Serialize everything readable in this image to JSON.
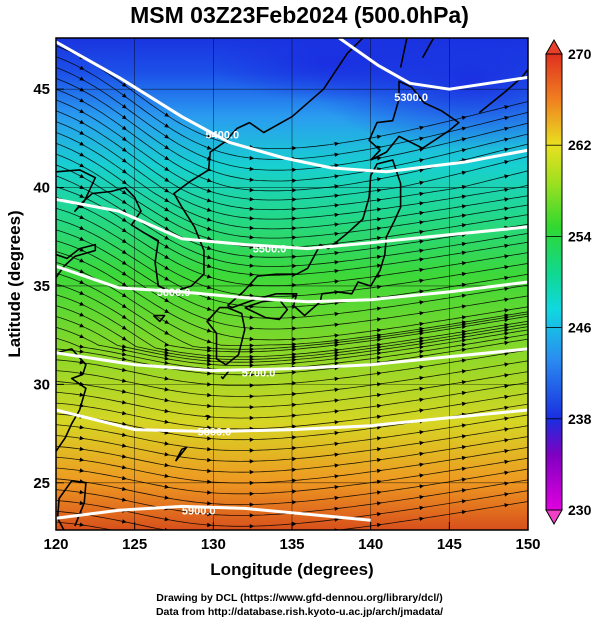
{
  "title": "MSM 03Z23Feb2024 (500.0hPa)",
  "x_axis": {
    "title": "Longitude (degrees)",
    "range": [
      120,
      150
    ],
    "ticks": [
      "120",
      "125",
      "130",
      "135",
      "140",
      "145",
      "150"
    ]
  },
  "y_axis": {
    "title": "Latitude  (degrees)",
    "range": [
      22.6,
      47.6
    ],
    "ticks": [
      "25",
      "30",
      "35",
      "40",
      "45"
    ]
  },
  "colorbar": {
    "range": [
      230,
      270
    ],
    "labels": [
      "270",
      "262",
      "254",
      "246",
      "238",
      "230"
    ],
    "colors": {
      "c230": "#e000e0",
      "c234": "#8000c0",
      "c238": "#1a2ee0",
      "c242": "#2a8cf0",
      "c246": "#10d8e0",
      "c250": "#10d890",
      "c254": "#30d830",
      "c258": "#a0e020",
      "c262": "#e8e020",
      "c266": "#f08020",
      "c270": "#e03020"
    }
  },
  "contours": [
    {
      "label": "5300.0"
    },
    {
      "label": "5400.0"
    },
    {
      "label": "5500.0"
    },
    {
      "label": "5600.0"
    },
    {
      "label": "5700.0"
    },
    {
      "label": "5800.0"
    },
    {
      "label": "5900.0"
    }
  ],
  "wind": {
    "flow": "westerly",
    "arrows": "streamlines"
  },
  "credit": {
    "line1": "Drawing by DCL (https://www.gfd-dennou.org/library/dcl/)",
    "line2": "Data from http://database.rish.kyoto-u.ac.jp/arch/jmadata/"
  }
}
